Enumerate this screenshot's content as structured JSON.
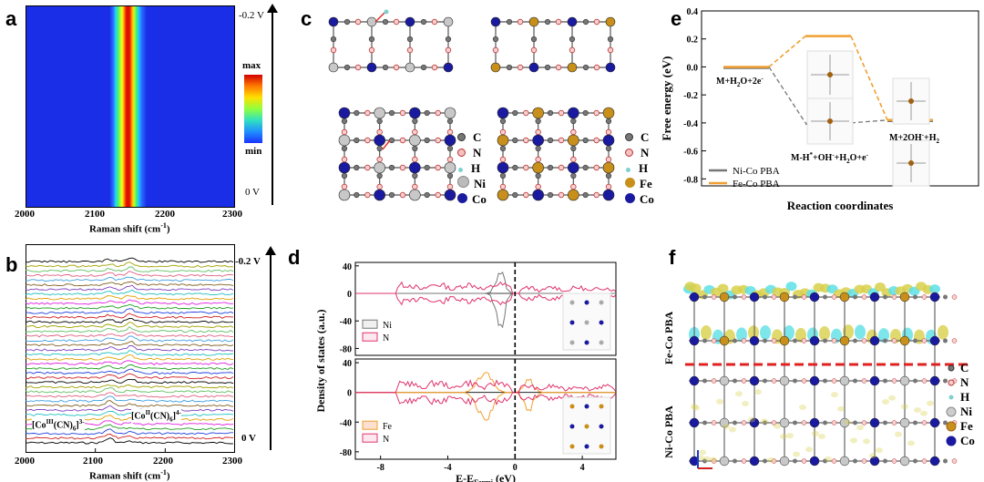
{
  "colors": {
    "heat_min": "#1a33ff",
    "heat_max": "#d10000",
    "ni_co": "#777777",
    "fe_co": "#f0a030",
    "pink": "#e0336e",
    "iso_yellow": "#d8d04a",
    "iso_cyan": "#5ce0e6",
    "dashed_red": "#e02020"
  },
  "panels": {
    "a": {
      "label": "a",
      "xlabel": "Raman shift (cm",
      "xlabel_sup": "-1",
      "xlabel_end": ")",
      "xticks": [
        "2000",
        "2100",
        "2200",
        "2300"
      ],
      "top_voltage": "-0.2 V",
      "bottom_voltage": "0 V",
      "colorbar_max": "max",
      "colorbar_min": "min"
    },
    "b": {
      "label": "b",
      "xlabel": "Raman shift (cm",
      "xlabel_sup": "-1",
      "xlabel_end": ")",
      "xticks": [
        "2000",
        "2100",
        "2200",
        "2300"
      ],
      "top_voltage": "-0.2 V",
      "bottom_voltage": "0 V",
      "peak1": "[Co",
      "peak1_sup": "III",
      "peak1_mid": "(CN)",
      "peak1_sub": "6",
      "peak1_end": "]",
      "peak1_charge": "3-",
      "peak2": "[Co",
      "peak2_sup": "II",
      "peak2_mid": "(CN)",
      "peak2_sub": "6",
      "peak2_end": "]",
      "peak2_charge": "4-"
    },
    "c": {
      "label": "c",
      "legend_left": [
        "C",
        "N",
        "H",
        "Ni",
        "Co"
      ],
      "legend_right": [
        "C",
        "N",
        "H",
        "Fe",
        "Co"
      ]
    },
    "d": {
      "label": "d",
      "ylabel": "Density of states (a.u.)",
      "xlabel": "E-E",
      "xlabel_sub": "Fermi",
      "xlabel_end": " (eV)",
      "xticks": [
        "-8",
        "-4",
        "0",
        "4"
      ],
      "yticks_top": [
        "40",
        "0",
        "-40",
        "-80"
      ],
      "yticks_bottom": [
        "40",
        "0",
        "-40",
        "-80"
      ],
      "legend_top": [
        "Ni",
        "N"
      ],
      "legend_bottom": [
        "Fe",
        "N"
      ]
    },
    "e": {
      "label": "e",
      "ylabel": "Free energy (eV)",
      "xlabel": "Reaction coordinates",
      "annot_start": "M+H",
      "annot_start_sub": "2",
      "annot_start_end": "O+2e",
      "annot_start_sup": "-",
      "annot_mid": "M-H",
      "annot_mid_sup": "*",
      "annot_mid_end": "+OH",
      "annot_mid_sup2": "-",
      "annot_mid_end2": "+H",
      "annot_mid_sub": "2",
      "annot_mid_end3": "O+e",
      "annot_mid_sup3": "-",
      "annot_end": "M+2OH",
      "annot_end_sup": "-",
      "annot_end_end": "+H",
      "annot_end_sub": "2",
      "legend": [
        "Ni-Co PBA",
        "Fe-Co PBA"
      ]
    },
    "f": {
      "label": "f",
      "top_label": "Fe-Co PBA",
      "bottom_label": "Ni-Co PBA",
      "legend": [
        "C",
        "N",
        "H",
        "Ni",
        "Fe",
        "Co"
      ]
    }
  },
  "chart_data": [
    {
      "type": "heatmap",
      "title": "a",
      "xlabel": "Raman shift (cm-1)",
      "xlim": [
        2000,
        2300
      ],
      "ylim": [
        0,
        -0.2
      ],
      "peak_center": 2140,
      "colorbar": [
        "min",
        "max"
      ]
    },
    {
      "type": "line",
      "title": "b",
      "xlabel": "Raman shift (cm-1)",
      "xlim": [
        2000,
        2300
      ],
      "n_spectra": 40,
      "peaks": [
        2120,
        2150
      ],
      "voltage_range": [
        "0 V",
        "-0.2 V"
      ]
    },
    {
      "type": "line",
      "title": "d",
      "ylabel": "Density of states (a.u.)",
      "xlabel": "E-E_Fermi (eV)",
      "xlim": [
        -9.5,
        6
      ],
      "ylim_top": [
        -90,
        45
      ],
      "ylim_bottom": [
        -90,
        45
      ],
      "series": [
        {
          "name": "Ni",
          "color": "#777777"
        },
        {
          "name": "N",
          "color": "#e0336e"
        },
        {
          "name": "Fe",
          "color": "#f0a030"
        },
        {
          "name": "N",
          "color": "#e0336e"
        }
      ]
    },
    {
      "type": "line",
      "title": "e",
      "ylabel": "Free energy (eV)",
      "xlabel": "Reaction coordinates",
      "ylim": [
        -0.85,
        0.4
      ],
      "yticks": [
        0.4,
        0.2,
        0.0,
        -0.2,
        -0.4,
        -0.6,
        -0.8
      ],
      "series": [
        {
          "name": "Ni-Co PBA",
          "values": [
            0.0,
            -0.4,
            -0.38
          ]
        },
        {
          "name": "Fe-Co PBA",
          "values": [
            0.0,
            0.22,
            -0.38
          ]
        }
      ]
    }
  ]
}
